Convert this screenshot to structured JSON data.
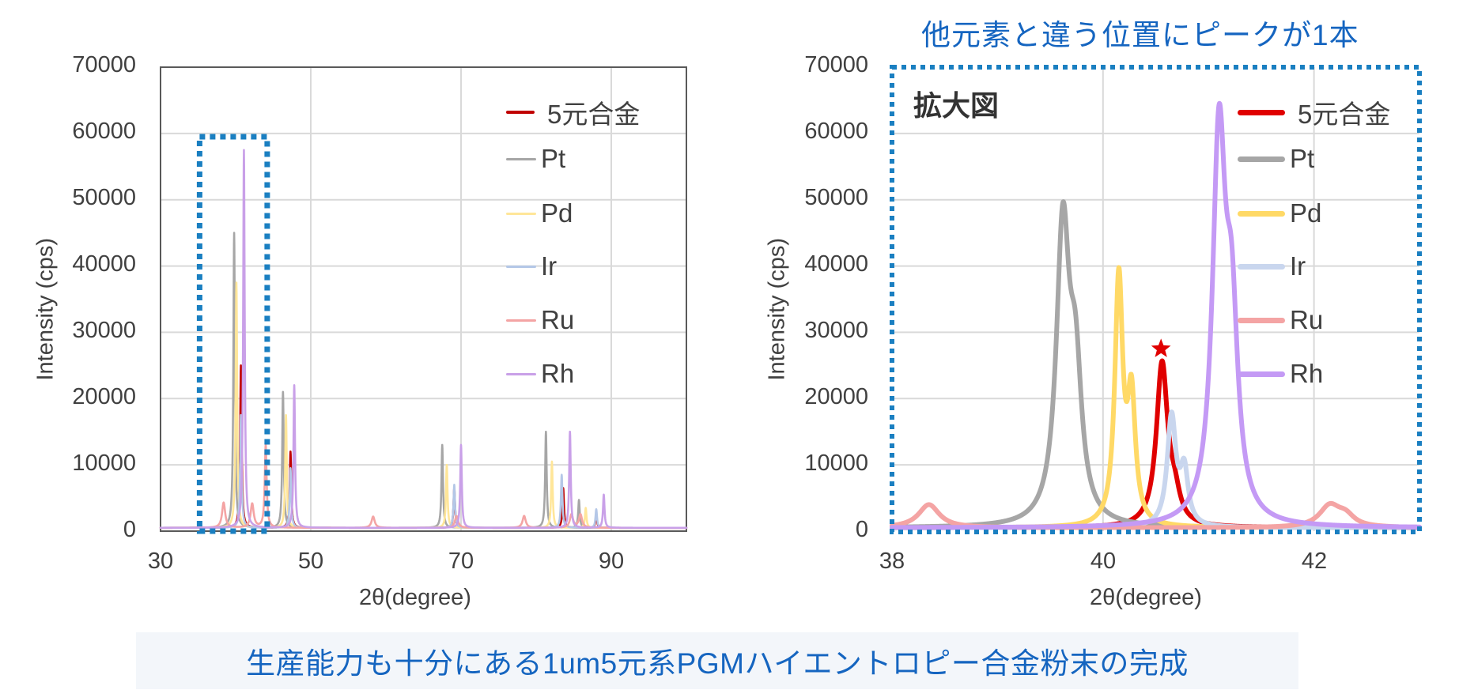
{
  "colors": {
    "alloy": "#c00000",
    "alloy_zoom": "#e00000",
    "Pt": "#a6a6a6",
    "Pd": "#ffe699",
    "Pd_zoom": "#ffd966",
    "Ir": "#b4c7e7",
    "Ir_zoom": "#c9d6ee",
    "Ru": "#f4a4a4",
    "Rh": "#c9a0e8",
    "Rh_zoom": "#c49af5",
    "highlight_box": "#1a7fc1",
    "headline": "#1565c0",
    "grid": "#d9d9d9",
    "axis": "#595959"
  },
  "headline": "他元素と違う位置にピークが1本",
  "banner": "生産能力も十分にある1um5元系PGMハイエントロピー合金粉末の完成",
  "chart_data": [
    {
      "id": "full",
      "type": "line",
      "title": "",
      "xlabel": "2θ(degree)",
      "ylabel": "Intensity (cps)",
      "xlim": [
        30,
        100
      ],
      "ylim": [
        0,
        70000
      ],
      "xticks": [
        30,
        50,
        70,
        90
      ],
      "yticks": [
        0,
        10000,
        20000,
        30000,
        40000,
        50000,
        60000,
        70000
      ],
      "grid": true,
      "legend_position": "upper right",
      "highlight_box": {
        "x": [
          35.2,
          44.2
        ],
        "y": [
          0,
          59500
        ],
        "style": "dotted"
      },
      "series": [
        {
          "name": "5元合金",
          "color_key": "alloy",
          "peaks": [
            [
              40.7,
              24500,
              0.12
            ],
            [
              47.3,
              11500,
              0.12
            ],
            [
              69.1,
              6000,
              0.12
            ],
            [
              83.6,
              6000,
              0.12
            ],
            [
              88.0,
              2000,
              0.12
            ]
          ]
        },
        {
          "name": "Pt",
          "color_key": "Pt",
          "peaks": [
            [
              39.8,
              44500,
              0.12
            ],
            [
              46.3,
              20500,
              0.12
            ],
            [
              67.5,
              12500,
              0.12
            ],
            [
              81.3,
              14500,
              0.12
            ],
            [
              85.7,
              4200,
              0.12
            ]
          ]
        },
        {
          "name": "Pd",
          "color_key": "Pd",
          "peaks": [
            [
              40.1,
              37000,
              0.12
            ],
            [
              46.7,
              17000,
              0.12
            ],
            [
              68.1,
              9500,
              0.12
            ],
            [
              82.1,
              10000,
              0.12
            ],
            [
              86.6,
              3000,
              0.12
            ]
          ]
        },
        {
          "name": "Ir",
          "color_key": "Ir",
          "peaks": [
            [
              40.7,
              17000,
              0.12
            ],
            [
              47.3,
              9000,
              0.12
            ],
            [
              69.1,
              6500,
              0.12
            ],
            [
              83.4,
              8000,
              0.12
            ],
            [
              88.0,
              2800,
              0.12
            ]
          ]
        },
        {
          "name": "Ru",
          "color_key": "Ru",
          "peaks": [
            [
              38.4,
              3800,
              0.25
            ],
            [
              42.2,
              3600,
              0.25
            ],
            [
              44.0,
              12500,
              0.15
            ],
            [
              58.3,
              1700,
              0.25
            ],
            [
              69.4,
              1800,
              0.25
            ],
            [
              78.4,
              1800,
              0.25
            ],
            [
              84.7,
              2000,
              0.25
            ],
            [
              85.9,
              2000,
              0.25
            ]
          ]
        },
        {
          "name": "Rh",
          "color_key": "Rh",
          "peaks": [
            [
              41.1,
              57000,
              0.12
            ],
            [
              47.8,
              21500,
              0.12
            ],
            [
              70.0,
              12500,
              0.12
            ],
            [
              84.5,
              14500,
              0.12
            ],
            [
              89.0,
              5000,
              0.12
            ]
          ]
        }
      ]
    },
    {
      "id": "zoom",
      "type": "line",
      "title": "拡大図",
      "xlabel": "2θ(degree)",
      "ylabel": "Intensity (cps)",
      "xlim": [
        38,
        43
      ],
      "ylim": [
        0,
        70000
      ],
      "xticks": [
        38,
        40,
        42
      ],
      "yticks": [
        0,
        10000,
        20000,
        30000,
        40000,
        50000,
        60000,
        70000
      ],
      "grid": true,
      "legend_position": "upper right",
      "annotation": {
        "type": "star",
        "x": 40.55,
        "y": 27500,
        "color": "#e00000",
        "note": "unique 5元合金 peak"
      },
      "series": [
        {
          "name": "5元合金",
          "color_key": "alloy_zoom",
          "peaks": [
            [
              40.56,
              24500,
              0.065
            ],
            [
              40.68,
              3500,
              0.06
            ]
          ]
        },
        {
          "name": "Pt",
          "color_key": "Pt",
          "peaks": [
            [
              39.62,
              44000,
              0.075
            ],
            [
              39.74,
              20000,
              0.07
            ]
          ]
        },
        {
          "name": "Pd",
          "color_key": "Pd_zoom",
          "peaks": [
            [
              40.15,
              37000,
              0.045
            ],
            [
              40.27,
              18500,
              0.045
            ]
          ]
        },
        {
          "name": "Ir",
          "color_key": "Ir_zoom",
          "peaks": [
            [
              40.65,
              16500,
              0.05
            ],
            [
              40.77,
              8000,
              0.045
            ]
          ]
        },
        {
          "name": "Ru",
          "color_key": "Ru",
          "peaks": [
            [
              38.35,
              3500,
              0.12
            ],
            [
              42.15,
              3200,
              0.12
            ],
            [
              42.3,
              1500,
              0.1
            ]
          ]
        },
        {
          "name": "Rh",
          "color_key": "Rh_zoom",
          "peaks": [
            [
              41.1,
              57000,
              0.075
            ],
            [
              41.22,
              27000,
              0.07
            ]
          ]
        }
      ]
    }
  ]
}
